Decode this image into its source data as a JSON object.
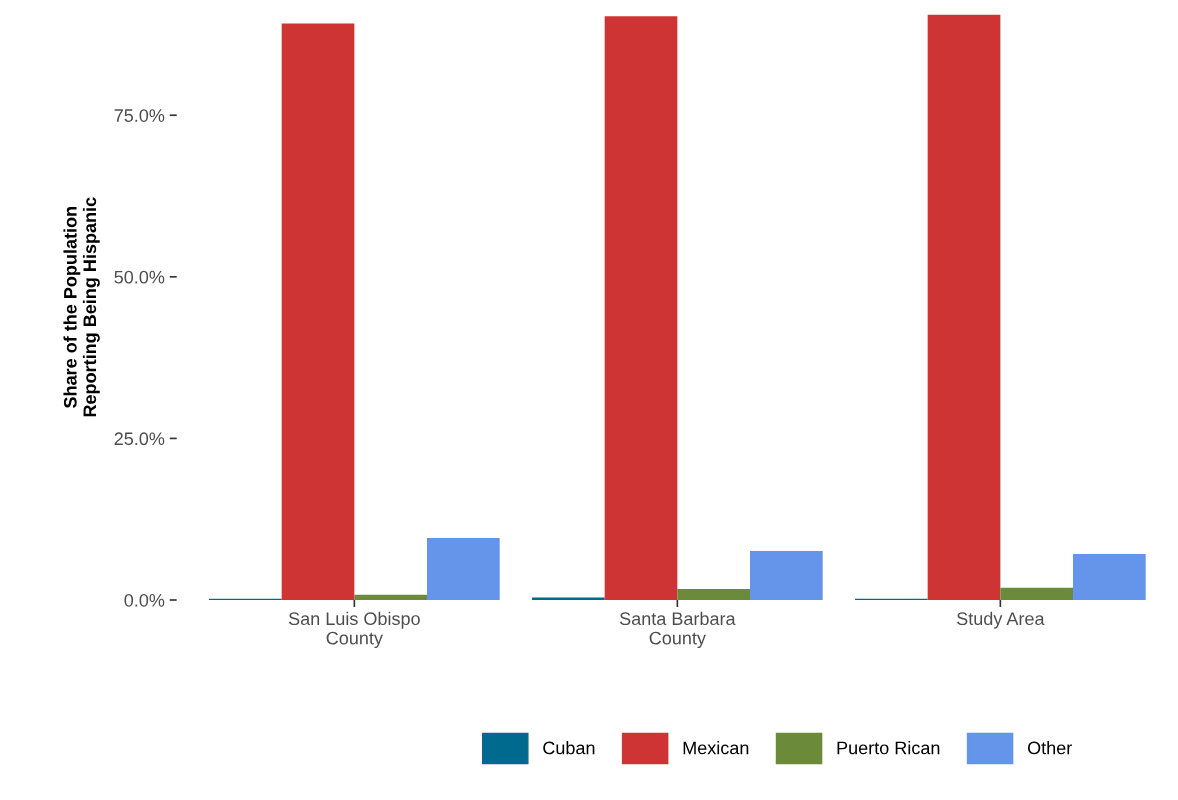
{
  "chart_data": {
    "type": "bar",
    "ylabel": "Share of the Population\nReporting Being Hispanic",
    "categories": [
      "San Luis Obispo\nCounty",
      "Santa Barbara\nCounty",
      "Study Area"
    ],
    "series": [
      {
        "name": "Cuban",
        "color": "#006a8e",
        "values": [
          0.2,
          0.4,
          0.2
        ]
      },
      {
        "name": "Mexican",
        "color": "#cf3434",
        "values": [
          89.2,
          90.3,
          90.6
        ]
      },
      {
        "name": "Puerto Rican",
        "color": "#6b8a3a",
        "values": [
          0.8,
          1.7,
          1.9
        ]
      },
      {
        "name": "Other",
        "color": "#6495ea",
        "values": [
          9.6,
          7.6,
          7.1
        ]
      }
    ],
    "ylim": [
      0,
      90.6
    ],
    "yticks": [
      {
        "value": 0,
        "label": "0.0%"
      },
      {
        "value": 25,
        "label": "25.0%"
      },
      {
        "value": 50,
        "label": "50.0%"
      },
      {
        "value": 75,
        "label": "75.0%"
      }
    ],
    "grid": false,
    "legend": "bottom"
  }
}
